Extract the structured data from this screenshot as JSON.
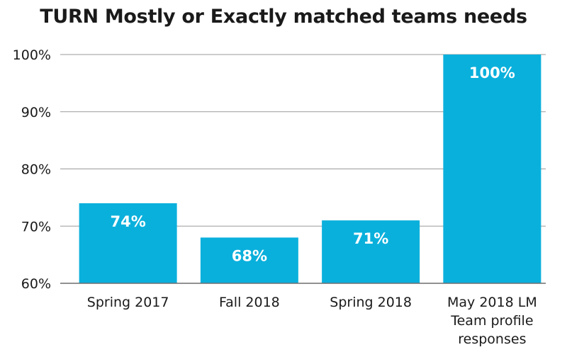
{
  "chart_data": {
    "type": "bar",
    "title": "TURN Mostly or Exactly matched teams needs",
    "categories": [
      [
        "Spring 2017"
      ],
      [
        "Fall 2018"
      ],
      [
        "Spring 2018"
      ],
      [
        "May 2018 LM",
        "Team profile",
        "responses"
      ]
    ],
    "values": [
      74,
      68,
      71,
      100
    ],
    "data_labels": [
      "74%",
      "68%",
      "71%",
      "100%"
    ],
    "yticks": [
      "60%",
      "70%",
      "80%",
      "90%",
      "100%"
    ],
    "ylim": [
      60,
      100
    ],
    "grid": true,
    "colors": {
      "bar": "#0ab0dc",
      "grid": "#9a9a9a",
      "axis": "#6e6e6e"
    }
  }
}
